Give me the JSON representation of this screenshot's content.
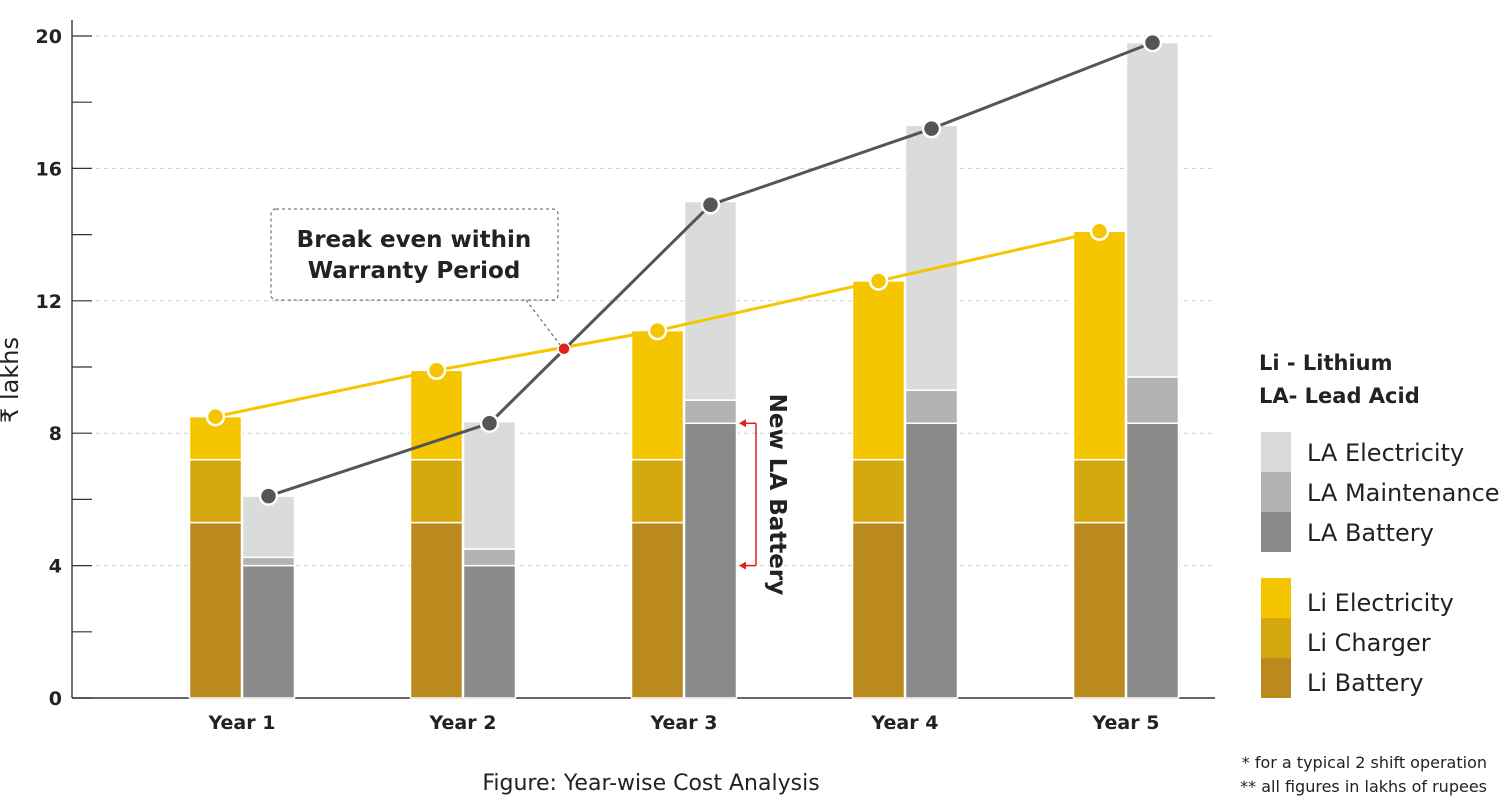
{
  "chart_data": {
    "type": "bar",
    "ylabel": "₹ lakhs",
    "ylim": [
      0,
      20
    ],
    "yticks": [
      "0",
      "4",
      "8",
      "12",
      "16",
      "20"
    ],
    "grid": true,
    "categories": [
      "Year 1",
      "Year 2",
      "Year 3",
      "Year 4",
      "Year 5"
    ],
    "stacks": [
      {
        "stack": "Li",
        "series": [
          {
            "name": "Li Battery",
            "color": "#BA8A1E",
            "values": [
              5.3,
              5.3,
              5.3,
              5.3,
              5.3
            ]
          },
          {
            "name": "Li Charger",
            "color": "#D6A80F",
            "values": [
              1.9,
              1.9,
              1.9,
              1.9,
              1.9
            ]
          },
          {
            "name": "Li Electricity",
            "color": "#F5C500",
            "values": [
              1.3,
              2.7,
              3.9,
              5.4,
              6.9
            ]
          }
        ]
      },
      {
        "stack": "LA",
        "series": [
          {
            "name": "LA Battery",
            "color": "#8A8A8A",
            "values": [
              4.0,
              4.0,
              8.3,
              8.3,
              8.3
            ]
          },
          {
            "name": "LA Maintenance",
            "color": "#B3B3B3",
            "values": [
              0.25,
              0.5,
              0.7,
              1.0,
              1.4
            ]
          },
          {
            "name": "LA Electricity",
            "color": "#DADBDB",
            "values": [
              1.85,
              3.85,
              6.0,
              8.0,
              10.1
            ]
          }
        ]
      }
    ],
    "lines": [
      {
        "stack": "Li",
        "color": "#F5C500",
        "values": [
          8.5,
          9.9,
          11.1,
          12.6,
          14.1
        ]
      },
      {
        "stack": "LA",
        "color": "#555555",
        "values": [
          6.1,
          8.3,
          14.9,
          17.2,
          19.8
        ]
      }
    ],
    "break_even": {
      "marker_color": "#E0201B",
      "year_fraction": 2.35,
      "value": 10.55
    },
    "annotations": {
      "break_even_text": [
        "Break even within",
        "Warranty Period"
      ],
      "new_battery_text": "New LA Battery",
      "new_battery_range": [
        4.0,
        8.3
      ],
      "arrow_color": "#E0201B"
    },
    "legend": {
      "heading": [
        "Li - Lithium",
        "LA- Lead Acid"
      ],
      "position": "right",
      "la_items": [
        {
          "label": "LA Electricity",
          "color": "#DADBDB"
        },
        {
          "label": "LA Maintenance",
          "color": "#B3B3B3"
        },
        {
          "label": "LA Battery",
          "color": "#8A8A8A"
        }
      ],
      "li_items": [
        {
          "label": "Li Electricity",
          "color": "#F5C500"
        },
        {
          "label": "Li Charger",
          "color": "#D6A80F"
        },
        {
          "label": "Li Battery",
          "color": "#BA8A1E"
        }
      ]
    },
    "caption": "Figure: Year-wise Cost Analysis",
    "footnotes": [
      "*  for a typical 2 shift operation",
      "**  all figures in lakhs of rupees"
    ]
  }
}
